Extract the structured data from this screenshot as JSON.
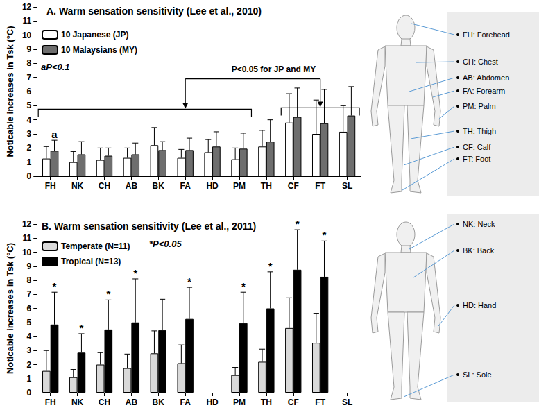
{
  "chart_data": [
    {
      "type": "bar",
      "title": "A. Warm sensation sensitivity (Lee et al., 2010)",
      "y_label": "Noticable increases in Tsk (°C)",
      "categories": [
        "FH",
        "NK",
        "CH",
        "AB",
        "BK",
        "FA",
        "HD",
        "PM",
        "TH",
        "CF",
        "FT",
        "SL"
      ],
      "series": [
        {
          "name": "10 Japanese (JP)",
          "color": "#ffffff",
          "values": [
            1.25,
            1.0,
            1.15,
            1.3,
            2.2,
            1.3,
            1.7,
            1.2,
            2.1,
            3.8,
            3.0,
            3.15
          ],
          "errors": [
            0.85,
            0.75,
            0.85,
            0.7,
            1.25,
            0.6,
            0.9,
            0.8,
            1.15,
            2.05,
            2.4,
            1.85
          ]
        },
        {
          "name": "10 Malaysians (MY)",
          "color": "#6e6e6e",
          "values": [
            1.8,
            1.55,
            1.45,
            1.55,
            1.85,
            1.85,
            2.1,
            1.95,
            2.45,
            4.2,
            3.75,
            4.3
          ],
          "errors": [
            0.75,
            0.9,
            0.55,
            0.8,
            0.6,
            0.85,
            1.05,
            1.1,
            1.55,
            2.05,
            2.4,
            2.05
          ]
        }
      ],
      "significance": [
        "a",
        null,
        null,
        null,
        null,
        null,
        null,
        null,
        null,
        null,
        null,
        null
      ],
      "note": "aP<0.1",
      "comparison": {
        "groups": [
          [
            "FH",
            "NK",
            "CH",
            "AB",
            "BK",
            "FA",
            "HD",
            "PM"
          ],
          [
            "CF",
            "FT",
            "SL"
          ]
        ],
        "label": "P<0.05 for JP and MY"
      },
      "ylim": [
        0,
        12
      ],
      "yticks": [
        0,
        1,
        2,
        3,
        4,
        5,
        6,
        7,
        8,
        9,
        10,
        11,
        12
      ],
      "grid": false,
      "legend": "upper left"
    },
    {
      "type": "bar",
      "title": "B. Warm sensation sensitivity (Lee et al., 2011)",
      "y_label": "Noticable increases in Tsk (°C)",
      "categories": [
        "FH",
        "NK",
        "CH",
        "AB",
        "BK",
        "FA",
        "HD",
        "PM",
        "TH",
        "CF",
        "FT",
        "SL"
      ],
      "series": [
        {
          "name": "Temperate (N=11)",
          "color": "#d9d9d9",
          "values": [
            1.55,
            1.1,
            2.0,
            1.75,
            2.8,
            2.1,
            null,
            1.25,
            2.2,
            4.6,
            3.55,
            null
          ],
          "errors": [
            1.45,
            0.55,
            0.85,
            1.0,
            1.6,
            1.3,
            null,
            0.55,
            0.9,
            2.15,
            2.1,
            null
          ]
        },
        {
          "name": "Tropical (N=13)",
          "color": "#000000",
          "values": [
            4.85,
            2.85,
            4.5,
            5.0,
            4.45,
            5.25,
            null,
            4.95,
            6.0,
            8.75,
            8.25,
            null
          ],
          "errors": [
            2.3,
            1.35,
            2.1,
            3.1,
            2.2,
            2.25,
            null,
            2.2,
            2.6,
            2.85,
            2.55,
            null
          ]
        }
      ],
      "significance": [
        "*",
        "*",
        "*",
        "*",
        null,
        "*",
        null,
        "*",
        "*",
        "*",
        "*",
        null
      ],
      "note": "*P<0.05",
      "ylim": [
        0,
        12
      ],
      "yticks": [
        0,
        1,
        2,
        3,
        4,
        5,
        6,
        7,
        8,
        9,
        10,
        11,
        12
      ],
      "grid": false,
      "legend": "upper left"
    }
  ],
  "body_labels": {
    "front": [
      "FH: Forehead",
      "CH: Chest",
      "AB: Abdomen",
      "FA: Forearm",
      "PM: Palm",
      "TH: Thigh",
      "CF: Calf",
      "FT: Foot"
    ],
    "back": [
      "NK: Neck",
      "BK: Back",
      "HD: Hand",
      "SL: Sole"
    ]
  }
}
